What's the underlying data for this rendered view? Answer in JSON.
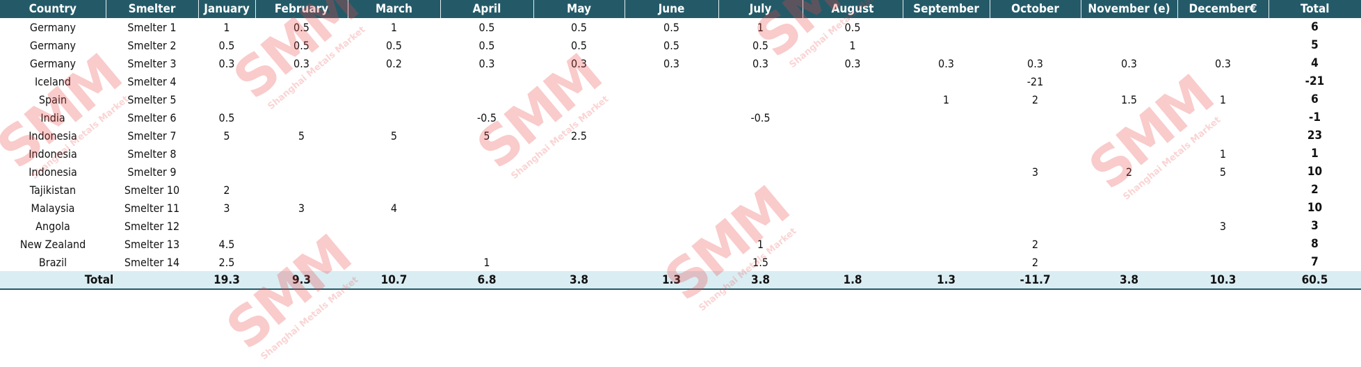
{
  "headers": [
    "Country",
    "Smelter",
    "January",
    "February",
    "March",
    "April",
    "May",
    "June",
    "July",
    "August",
    "September",
    "October",
    "November (e)",
    "December€",
    "Total"
  ],
  "rows": [
    [
      "Germany",
      "Smelter 1",
      "1",
      "0.5",
      "1",
      "0.5",
      "0.5",
      "0.5",
      "1",
      "0.5",
      "",
      "",
      "",
      "",
      "6"
    ],
    [
      "Germany",
      "Smelter 2",
      "0.5",
      "0.5",
      "0.5",
      "0.5",
      "0.5",
      "0.5",
      "0.5",
      "1",
      "",
      "",
      "",
      "",
      "5"
    ],
    [
      "Germany",
      "Smelter 3",
      "0.3",
      "0.3",
      "0.2",
      "0.3",
      "0.3",
      "0.3",
      "0.3",
      "0.3",
      "0.3",
      "0.3",
      "0.3",
      "0.3",
      "4"
    ],
    [
      "Iceland",
      "Smelter 4",
      "",
      "",
      "",
      "",
      "",
      "",
      "",
      "",
      "",
      "-21",
      "",
      "",
      "-21"
    ],
    [
      "Spain",
      "Smelter 5",
      "",
      "",
      "",
      "",
      "",
      "",
      "",
      "",
      "1",
      "2",
      "1.5",
      "1",
      "6"
    ],
    [
      "India",
      "Smelter 6",
      "0.5",
      "",
      "",
      "-0.5",
      "",
      "",
      "-0.5",
      "",
      "",
      "",
      "",
      "",
      "-1"
    ],
    [
      "Indonesia",
      "Smelter 7",
      "5",
      "5",
      "5",
      "5",
      "2.5",
      "",
      "",
      "",
      "",
      "",
      "",
      "",
      "23"
    ],
    [
      "Indonesia",
      "Smelter 8",
      "",
      "",
      "",
      "",
      "",
      "",
      "",
      "",
      "",
      "",
      "",
      "1",
      "1"
    ],
    [
      "Indonesia",
      "Smelter 9",
      "",
      "",
      "",
      "",
      "",
      "",
      "",
      "",
      "",
      "3",
      "2",
      "5",
      "10"
    ],
    [
      "Tajikistan",
      "Smelter 10",
      "2",
      "",
      "",
      "",
      "",
      "",
      "",
      "",
      "",
      "",
      "",
      "",
      "2"
    ],
    [
      "Malaysia",
      "Smelter 11",
      "3",
      "3",
      "4",
      "",
      "",
      "",
      "",
      "",
      "",
      "",
      "",
      "",
      "10"
    ],
    [
      "Angola",
      "Smelter 12",
      "",
      "",
      "",
      "",
      "",
      "",
      "",
      "",
      "",
      "",
      "",
      "3",
      "3"
    ],
    [
      "New Zealand",
      "Smelter 13",
      "4.5",
      "",
      "",
      "",
      "",
      "",
      "1",
      "",
      "",
      "2",
      "",
      "",
      "8"
    ],
    [
      "Brazil",
      "Smelter 14",
      "2.5",
      "",
      "",
      "1",
      "",
      "",
      "1.5",
      "",
      "",
      "2",
      "",
      "",
      "7"
    ]
  ],
  "total_row": {
    "label": "Total",
    "values": [
      "19.3",
      "9.3",
      "10.7",
      "6.8",
      "3.8",
      "1.3",
      "3.8",
      "1.8",
      "1.3",
      "-11.7",
      "3.8",
      "10.3",
      "60.5"
    ]
  },
  "watermark": {
    "logo": "SMM",
    "text": "Shanghai Metals Market"
  },
  "colors": {
    "header_bg": "#245a68",
    "total_bg": "#daedf3",
    "watermark": "#e63c3c"
  }
}
